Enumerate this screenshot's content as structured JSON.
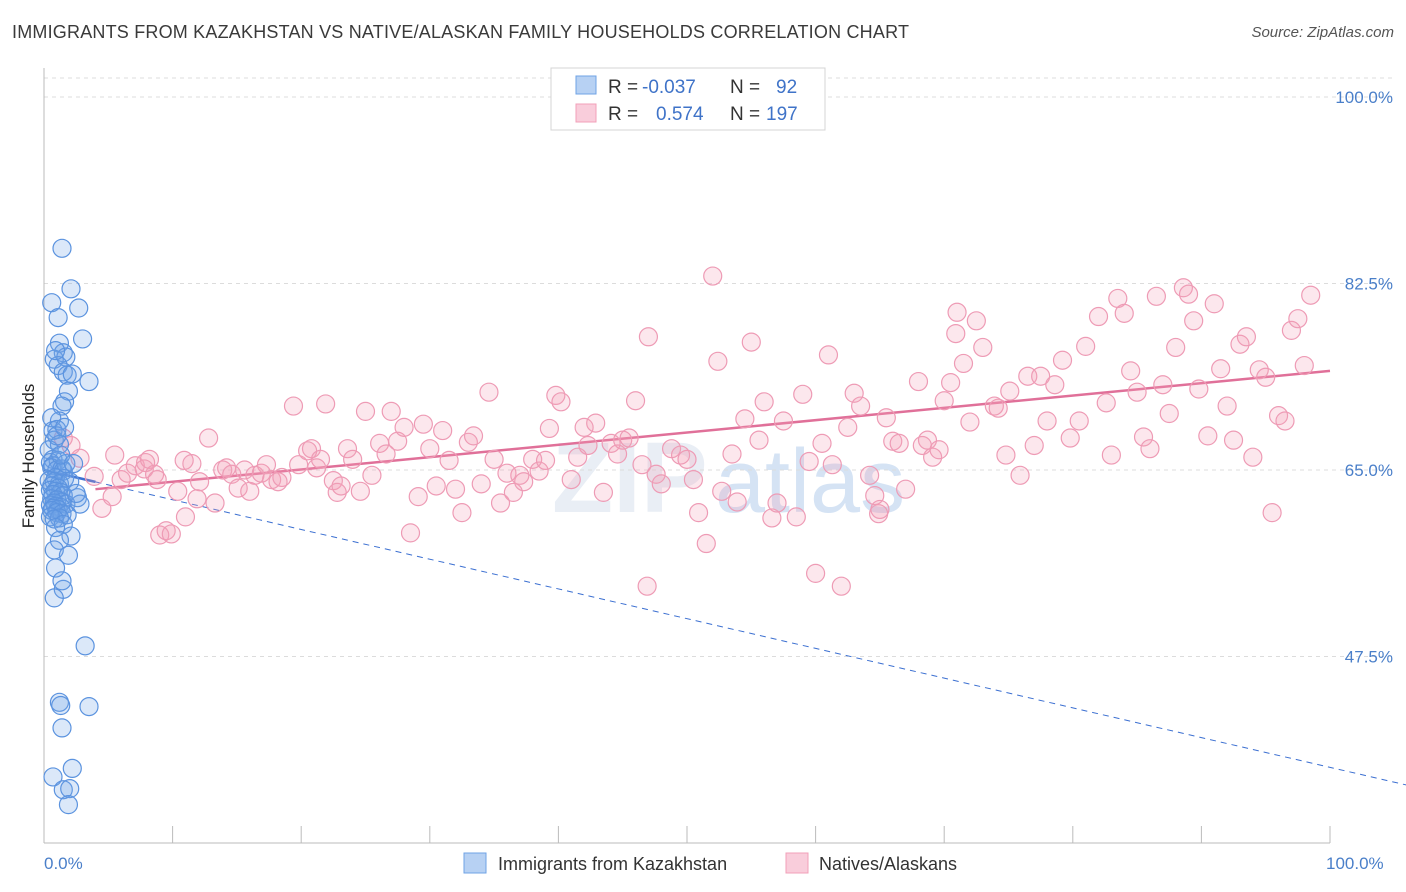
{
  "title": "IMMIGRANTS FROM KAZAKHSTAN VS NATIVE/ALASKAN FAMILY HOUSEHOLDS CORRELATION CHART",
  "source": "Source: ZipAtlas.com",
  "watermark": {
    "zip": "ZIP",
    "atlas": "atlas"
  },
  "colors": {
    "blue": "#6fa3e6",
    "blue_line": "#3b6fd1",
    "pink": "#f2a0b8",
    "pink_line": "#e07099",
    "tick_text": "#4a7fc9"
  },
  "legend": {
    "rows": [
      {
        "r_label": "R =",
        "r_value": "-0.037",
        "n_label": "N =",
        "n_value": "92"
      },
      {
        "r_label": "R =",
        "r_value": "0.574",
        "n_label": "N =",
        "n_value": "197"
      }
    ]
  },
  "chart_data": {
    "type": "scatter",
    "title": "IMMIGRANTS FROM KAZAKHSTAN VS NATIVE/ALASKAN FAMILY HOUSEHOLDS CORRELATION CHART",
    "xlabel": "",
    "ylabel": "Family Households",
    "xlim": [
      0,
      100
    ],
    "ylim": [
      30,
      100
    ],
    "x_tick_labels": [
      "0.0%",
      "100.0%"
    ],
    "y_ticks": [
      {
        "value": 47.5,
        "label": "47.5%"
      },
      {
        "value": 65.0,
        "label": "65.0%"
      },
      {
        "value": 82.5,
        "label": "82.5%"
      },
      {
        "value": 100.0,
        "label": "100.0%"
      }
    ],
    "grid": true,
    "legend_position": "bottom-center",
    "series": [
      {
        "name": "Immigrants from Kazakhstan",
        "color": "#6fa3e6",
        "trend": {
          "x": [
            0.0,
            100.0
          ],
          "y": [
            65.0,
            37.1
          ],
          "solid_until_x": 4.0
        },
        "points": [
          [
            1.4,
            85.8
          ],
          [
            2.1,
            82.0
          ],
          [
            0.6,
            80.7
          ],
          [
            2.7,
            80.2
          ],
          [
            1.1,
            79.3
          ],
          [
            3.0,
            77.3
          ],
          [
            1.2,
            76.9
          ],
          [
            1.5,
            76.0
          ],
          [
            0.8,
            75.4
          ],
          [
            1.7,
            75.6
          ],
          [
            1.1,
            74.8
          ],
          [
            1.5,
            74.2
          ],
          [
            1.8,
            73.9
          ],
          [
            3.5,
            73.3
          ],
          [
            1.9,
            72.4
          ],
          [
            1.6,
            71.4
          ],
          [
            1.4,
            71.0
          ],
          [
            1.2,
            69.6
          ],
          [
            0.6,
            69.9
          ],
          [
            0.7,
            68.7
          ],
          [
            1.0,
            68.8
          ],
          [
            0.8,
            67.8
          ],
          [
            1.2,
            67.4
          ],
          [
            0.4,
            66.9
          ],
          [
            0.7,
            66.0
          ],
          [
            1.1,
            65.9
          ],
          [
            0.5,
            65.7
          ],
          [
            0.7,
            65.4
          ],
          [
            0.6,
            65.2
          ],
          [
            1.0,
            65.0
          ],
          [
            1.4,
            65.1
          ],
          [
            1.5,
            64.9
          ],
          [
            0.9,
            64.3
          ],
          [
            1.6,
            64.2
          ],
          [
            0.4,
            64.0
          ],
          [
            0.8,
            63.9
          ],
          [
            1.2,
            63.7
          ],
          [
            2.0,
            63.9
          ],
          [
            0.6,
            63.5
          ],
          [
            1.1,
            63.3
          ],
          [
            0.5,
            63.1
          ],
          [
            0.9,
            63.0
          ],
          [
            1.3,
            62.9
          ],
          [
            0.7,
            62.7
          ],
          [
            1.5,
            62.6
          ],
          [
            2.6,
            62.4
          ],
          [
            0.6,
            62.3
          ],
          [
            1.0,
            62.2
          ],
          [
            1.4,
            62.0
          ],
          [
            0.8,
            61.9
          ],
          [
            1.7,
            61.8
          ],
          [
            2.8,
            61.8
          ],
          [
            0.5,
            61.7
          ],
          [
            0.9,
            61.6
          ],
          [
            1.3,
            61.5
          ],
          [
            0.7,
            61.4
          ],
          [
            1.1,
            61.3
          ],
          [
            0.6,
            61.2
          ],
          [
            1.0,
            61.0
          ],
          [
            1.4,
            60.9
          ],
          [
            1.8,
            60.8
          ],
          [
            0.5,
            60.6
          ],
          [
            1.2,
            60.5
          ],
          [
            0.8,
            60.4
          ],
          [
            1.5,
            59.9
          ],
          [
            0.9,
            59.6
          ],
          [
            2.1,
            58.8
          ],
          [
            1.2,
            58.4
          ],
          [
            0.8,
            57.5
          ],
          [
            1.9,
            57.0
          ],
          [
            0.9,
            55.8
          ],
          [
            1.5,
            53.8
          ],
          [
            0.8,
            53.0
          ],
          [
            1.4,
            54.6
          ],
          [
            3.2,
            48.5
          ],
          [
            1.2,
            43.2
          ],
          [
            1.3,
            42.9
          ],
          [
            3.5,
            42.8
          ],
          [
            1.4,
            40.8
          ],
          [
            2.2,
            37.0
          ],
          [
            0.7,
            36.2
          ],
          [
            1.5,
            35.0
          ],
          [
            2.0,
            35.1
          ],
          [
            1.9,
            33.6
          ],
          [
            2.5,
            62.8
          ],
          [
            1.7,
            65.6
          ],
          [
            1.3,
            66.4
          ],
          [
            2.3,
            65.6
          ],
          [
            1.0,
            68.2
          ],
          [
            1.6,
            69.0
          ],
          [
            0.9,
            76.2
          ],
          [
            2.2,
            74.0
          ]
        ]
      },
      {
        "name": "Natives/Alaskans",
        "color": "#f2a0b8",
        "trend": {
          "x": [
            4.0,
            100.0
          ],
          "y": [
            63.2,
            74.3
          ]
        },
        "points": [
          [
            1.5,
            68.0
          ],
          [
            2.1,
            67.3
          ],
          [
            2.8,
            66.1
          ],
          [
            3.9,
            64.4
          ],
          [
            4.5,
            61.4
          ],
          [
            5.3,
            62.5
          ],
          [
            5.5,
            66.4
          ],
          [
            6.0,
            64.1
          ],
          [
            6.5,
            64.7
          ],
          [
            7.1,
            65.4
          ],
          [
            7.8,
            65.1
          ],
          [
            7.9,
            65.7
          ],
          [
            8.2,
            66.0
          ],
          [
            8.6,
            64.6
          ],
          [
            8.8,
            64.1
          ],
          [
            9.0,
            58.9
          ],
          [
            9.5,
            59.3
          ],
          [
            9.9,
            59.0
          ],
          [
            10.4,
            63.0
          ],
          [
            10.9,
            65.9
          ],
          [
            11.0,
            60.6
          ],
          [
            11.5,
            65.6
          ],
          [
            11.9,
            62.3
          ],
          [
            12.1,
            63.9
          ],
          [
            12.8,
            68.0
          ],
          [
            13.3,
            61.9
          ],
          [
            13.9,
            65.0
          ],
          [
            14.2,
            65.2
          ],
          [
            14.6,
            64.6
          ],
          [
            15.1,
            63.3
          ],
          [
            15.6,
            65.0
          ],
          [
            16.0,
            63.0
          ],
          [
            16.4,
            64.5
          ],
          [
            16.9,
            64.7
          ],
          [
            17.3,
            65.5
          ],
          [
            17.7,
            64.1
          ],
          [
            18.2,
            63.9
          ],
          [
            18.5,
            64.3
          ],
          [
            19.4,
            71.0
          ],
          [
            19.8,
            65.5
          ],
          [
            20.5,
            66.8
          ],
          [
            20.8,
            67.0
          ],
          [
            21.2,
            65.2
          ],
          [
            21.5,
            66.0
          ],
          [
            21.9,
            71.2
          ],
          [
            22.5,
            64.0
          ],
          [
            22.8,
            62.9
          ],
          [
            23.1,
            63.5
          ],
          [
            23.6,
            67.0
          ],
          [
            24.0,
            66.0
          ],
          [
            24.6,
            63.0
          ],
          [
            25.0,
            70.5
          ],
          [
            25.5,
            64.5
          ],
          [
            26.1,
            67.5
          ],
          [
            26.6,
            66.5
          ],
          [
            27.0,
            70.5
          ],
          [
            27.5,
            67.7
          ],
          [
            28.0,
            69.0
          ],
          [
            28.5,
            59.1
          ],
          [
            29.1,
            62.5
          ],
          [
            29.5,
            69.3
          ],
          [
            30.0,
            67.0
          ],
          [
            30.5,
            63.5
          ],
          [
            31.0,
            68.7
          ],
          [
            31.5,
            65.9
          ],
          [
            32.0,
            63.2
          ],
          [
            32.5,
            61.0
          ],
          [
            33.0,
            67.6
          ],
          [
            33.4,
            68.2
          ],
          [
            34.0,
            63.7
          ],
          [
            34.6,
            72.3
          ],
          [
            35.0,
            66.0
          ],
          [
            35.5,
            61.9
          ],
          [
            36.0,
            64.7
          ],
          [
            36.5,
            62.9
          ],
          [
            37.0,
            64.5
          ],
          [
            37.3,
            63.9
          ],
          [
            38.0,
            66.0
          ],
          [
            38.5,
            64.9
          ],
          [
            39.0,
            65.9
          ],
          [
            39.3,
            68.9
          ],
          [
            39.8,
            72.0
          ],
          [
            40.2,
            71.4
          ],
          [
            41.0,
            64.1
          ],
          [
            41.5,
            66.2
          ],
          [
            42.0,
            69.0
          ],
          [
            42.3,
            67.3
          ],
          [
            42.9,
            69.4
          ],
          [
            43.5,
            62.9
          ],
          [
            44.1,
            67.5
          ],
          [
            44.6,
            66.5
          ],
          [
            45.0,
            67.8
          ],
          [
            45.5,
            68.0
          ],
          [
            46.0,
            71.5
          ],
          [
            46.5,
            65.5
          ],
          [
            46.9,
            54.1
          ],
          [
            47.0,
            77.5
          ],
          [
            47.6,
            64.6
          ],
          [
            48.0,
            63.7
          ],
          [
            48.8,
            67.0
          ],
          [
            49.5,
            66.4
          ],
          [
            50.0,
            66.0
          ],
          [
            50.5,
            64.1
          ],
          [
            50.9,
            61.0
          ],
          [
            51.5,
            58.1
          ],
          [
            52.0,
            83.2
          ],
          [
            52.4,
            75.2
          ],
          [
            52.7,
            63.0
          ],
          [
            53.5,
            66.5
          ],
          [
            53.9,
            62.0
          ],
          [
            54.5,
            69.8
          ],
          [
            55.0,
            77.0
          ],
          [
            55.6,
            67.8
          ],
          [
            56.0,
            71.4
          ],
          [
            56.6,
            60.5
          ],
          [
            57.0,
            61.9
          ],
          [
            57.5,
            69.6
          ],
          [
            58.5,
            60.6
          ],
          [
            59.0,
            72.1
          ],
          [
            59.5,
            65.8
          ],
          [
            60.0,
            55.3
          ],
          [
            60.5,
            67.5
          ],
          [
            61.0,
            75.8
          ],
          [
            61.3,
            65.5
          ],
          [
            62.0,
            54.1
          ],
          [
            62.5,
            69.0
          ],
          [
            63.0,
            72.2
          ],
          [
            63.5,
            71.0
          ],
          [
            64.2,
            64.5
          ],
          [
            64.6,
            62.6
          ],
          [
            64.9,
            60.9
          ],
          [
            65.0,
            61.3
          ],
          [
            65.5,
            69.9
          ],
          [
            66.0,
            67.7
          ],
          [
            66.5,
            67.5
          ],
          [
            67.0,
            63.2
          ],
          [
            68.0,
            73.3
          ],
          [
            68.3,
            67.3
          ],
          [
            68.7,
            67.8
          ],
          [
            69.1,
            66.2
          ],
          [
            69.6,
            66.9
          ],
          [
            70.0,
            71.5
          ],
          [
            70.5,
            73.2
          ],
          [
            70.9,
            77.8
          ],
          [
            71.0,
            79.8
          ],
          [
            71.5,
            75.0
          ],
          [
            72.0,
            69.5
          ],
          [
            72.5,
            79.0
          ],
          [
            73.0,
            76.5
          ],
          [
            73.9,
            71.0
          ],
          [
            74.2,
            70.8
          ],
          [
            74.8,
            66.4
          ],
          [
            75.1,
            72.4
          ],
          [
            75.9,
            64.5
          ],
          [
            76.5,
            73.8
          ],
          [
            77.0,
            67.3
          ],
          [
            77.5,
            73.8
          ],
          [
            78.0,
            69.6
          ],
          [
            78.6,
            73.0
          ],
          [
            79.2,
            75.3
          ],
          [
            79.8,
            68.0
          ],
          [
            80.5,
            69.6
          ],
          [
            81.0,
            76.6
          ],
          [
            82.0,
            79.4
          ],
          [
            82.6,
            71.3
          ],
          [
            83.0,
            66.4
          ],
          [
            83.5,
            81.1
          ],
          [
            84.0,
            79.7
          ],
          [
            84.5,
            74.3
          ],
          [
            85.0,
            72.3
          ],
          [
            85.5,
            68.1
          ],
          [
            86.0,
            67.0
          ],
          [
            86.5,
            81.3
          ],
          [
            87.0,
            73.0
          ],
          [
            87.5,
            70.3
          ],
          [
            88.0,
            76.5
          ],
          [
            88.6,
            82.1
          ],
          [
            89.0,
            81.5
          ],
          [
            89.4,
            79.0
          ],
          [
            89.8,
            72.6
          ],
          [
            90.5,
            68.2
          ],
          [
            91.0,
            80.6
          ],
          [
            91.5,
            74.5
          ],
          [
            92.0,
            71.0
          ],
          [
            92.5,
            67.8
          ],
          [
            93.0,
            76.8
          ],
          [
            93.5,
            77.5
          ],
          [
            94.0,
            66.2
          ],
          [
            94.5,
            74.4
          ],
          [
            95.0,
            73.7
          ],
          [
            95.5,
            61.0
          ],
          [
            96.0,
            70.1
          ],
          [
            96.5,
            69.6
          ],
          [
            97.0,
            78.1
          ],
          [
            97.5,
            79.2
          ],
          [
            98.0,
            74.8
          ],
          [
            98.5,
            81.4
          ]
        ]
      }
    ]
  }
}
